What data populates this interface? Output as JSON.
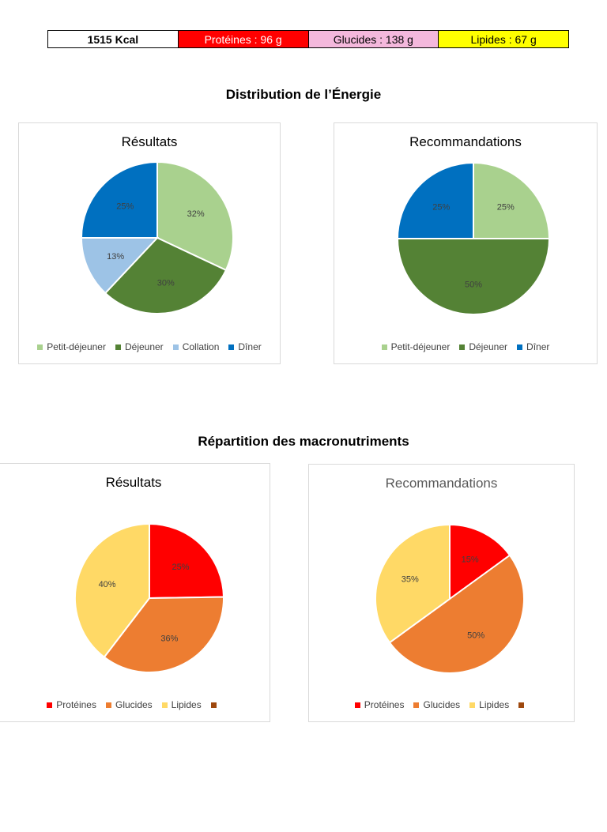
{
  "summary": {
    "kcal": "1515 Kcal",
    "proteines": "Protéines : 96 g",
    "glucides": "Glucides : 138 g",
    "lipides": "Lipides : 67 g"
  },
  "sections": {
    "energy_title": "Distribution de l’Énergie",
    "macro_title": "Répartition des macronutriments"
  },
  "colors": {
    "petit_dejeuner": "#a9d18e",
    "dejeuner": "#548235",
    "collation": "#9dc3e6",
    "diner": "#0070c0",
    "proteines": "#ff0000",
    "glucides": "#ed7d31",
    "lipides": "#ffd966",
    "extra": "#9e480e"
  },
  "chart_data": [
    {
      "type": "pie",
      "title": "Résultats",
      "categories": [
        "Petit-déjeuner",
        "Déjeuner",
        "Collation",
        "Dîner"
      ],
      "values": [
        32,
        30,
        13,
        25
      ],
      "labels": [
        "32%",
        "30%",
        "13%",
        "25%"
      ],
      "colors": [
        "#a9d18e",
        "#548235",
        "#9dc3e6",
        "#0070c0"
      ],
      "legend": [
        "Petit-déjeuner",
        "Déjeuner",
        "Collation",
        "Dîner"
      ],
      "legend_position": "bottom"
    },
    {
      "type": "pie",
      "title": "Recommandations",
      "categories": [
        "Petit-déjeuner",
        "Déjeuner",
        "Dîner"
      ],
      "values": [
        25,
        50,
        25
      ],
      "labels": [
        "25%",
        "50%",
        "25%"
      ],
      "colors": [
        "#a9d18e",
        "#548235",
        "#0070c0"
      ],
      "legend": [
        "Petit-déjeuner",
        "Déjeuner",
        "Dîner"
      ],
      "legend_position": "bottom"
    },
    {
      "type": "pie",
      "title": "Résultats",
      "categories": [
        "Protéines",
        "Glucides",
        "Lipides"
      ],
      "values": [
        25,
        36,
        40
      ],
      "labels": [
        "25%",
        "36%",
        "40%"
      ],
      "colors": [
        "#ff0000",
        "#ed7d31",
        "#ffd966"
      ],
      "legend": [
        "Protéines",
        "Glucides",
        "Lipides",
        ""
      ],
      "legend_colors": [
        "#ff0000",
        "#ed7d31",
        "#ffd966",
        "#9e480e"
      ],
      "legend_position": "bottom"
    },
    {
      "type": "pie",
      "title": "Recommandations",
      "categories": [
        "Protéines",
        "Glucides",
        "Lipides"
      ],
      "values": [
        15,
        50,
        35
      ],
      "labels": [
        "15%",
        "50%",
        "35%"
      ],
      "colors": [
        "#ff0000",
        "#ed7d31",
        "#ffd966"
      ],
      "legend": [
        "Protéines",
        "Glucides",
        "Lipides",
        ""
      ],
      "legend_colors": [
        "#ff0000",
        "#ed7d31",
        "#ffd966",
        "#9e480e"
      ],
      "legend_position": "bottom"
    }
  ]
}
